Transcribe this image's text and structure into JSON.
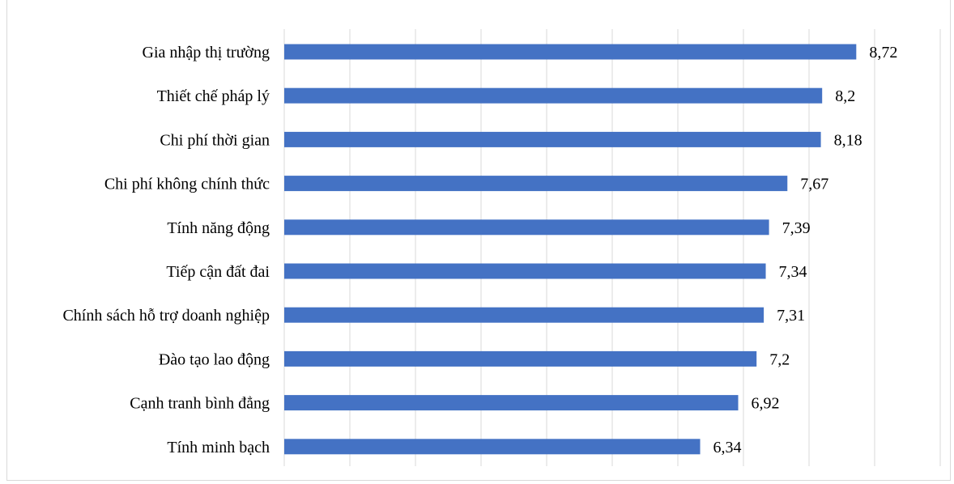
{
  "chart_data": {
    "type": "bar",
    "orientation": "horizontal",
    "title": "",
    "categories": [
      "Gia nhập thị trường",
      "Thiết chế pháp lý",
      "Chi phí thời gian",
      "Chi phí không chính thức",
      "Tính năng động",
      "Tiếp cận đất đai",
      "Chính sách hỗ trợ doanh nghiệp",
      "Đào tạo lao động",
      "Cạnh tranh bình đẳng",
      "Tính minh bạch"
    ],
    "values": [
      8.72,
      8.2,
      8.18,
      7.67,
      7.39,
      7.34,
      7.31,
      7.2,
      6.92,
      6.34
    ],
    "value_labels": [
      "8,72",
      "8,2",
      "8,18",
      "7,67",
      "7,39",
      "7,34",
      "7,31",
      "7,2",
      "6,92",
      "6,34"
    ],
    "xlim": [
      0,
      10
    ],
    "grid": true,
    "bar_color": "#4472c4",
    "grid_color": "#d9d9d9"
  }
}
